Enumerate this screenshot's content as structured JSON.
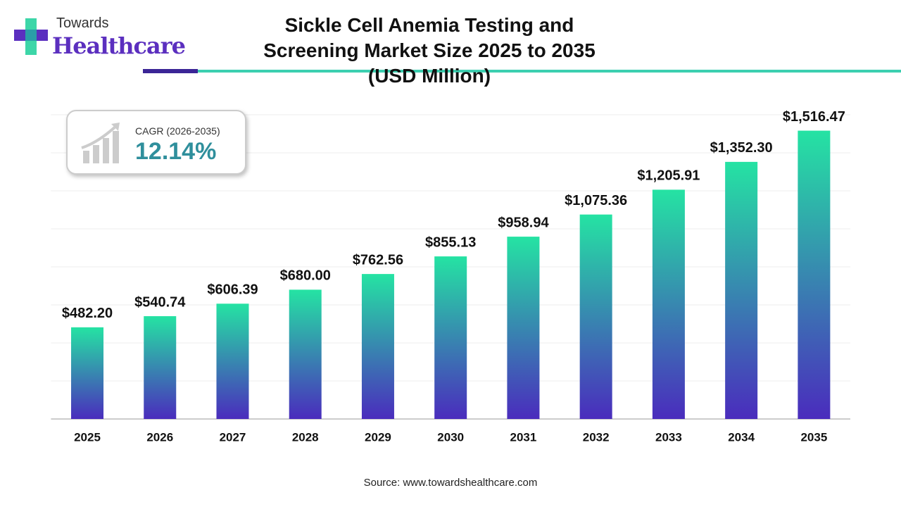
{
  "header": {
    "brand_top": "Towards",
    "brand": "Healthcare"
  },
  "chart_data": {
    "type": "bar",
    "title": "Sickle Cell Anemia Testing and Screening Market Size 2025 to 2035 (USD Million)",
    "categories": [
      "2025",
      "2026",
      "2027",
      "2028",
      "2029",
      "2030",
      "2031",
      "2032",
      "2033",
      "2034",
      "2035"
    ],
    "values": [
      482.2,
      540.74,
      606.39,
      680.0,
      762.56,
      855.13,
      958.94,
      1075.36,
      1205.91,
      1352.3,
      1516.47
    ],
    "value_labels": [
      "$482.20",
      "$540.74",
      "$606.39",
      "$680.00",
      "$762.56",
      "$855.13",
      "$958.94",
      "$1,075.36",
      "$1,205.91",
      "$1,352.30",
      "$1,516.47"
    ],
    "gradient": [
      "#25e3a3",
      "#4a2cbd"
    ],
    "ylim": [
      0,
      1600
    ],
    "grid": true,
    "cagr_label": "CAGR (2026-2035)",
    "cagr_value": "12.14%",
    "source": "Source: www.towardshealthcare.com"
  }
}
